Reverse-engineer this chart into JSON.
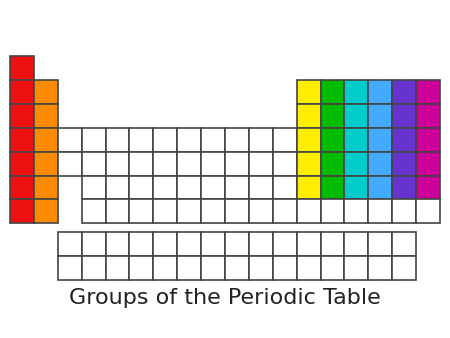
{
  "title": "Groups of the Periodic Table",
  "title_fontsize": 16,
  "bg_color": "#ffffff",
  "edge_color": "#444444",
  "lw": 1.2,
  "white": "#ffffff",
  "colors": {
    "red": "#ee1111",
    "orange": "#ff8c00",
    "yellow": "#ffee00",
    "green": "#00bb00",
    "teal": "#00cccc",
    "blue": "#44aaff",
    "purple": "#6633cc",
    "magenta": "#cc0099"
  },
  "row_structure": [
    [
      0
    ],
    [
      0,
      1,
      12,
      13,
      14,
      15,
      16,
      17
    ],
    [
      0,
      1,
      12,
      13,
      14,
      15,
      16,
      17
    ],
    [
      0,
      1,
      2,
      3,
      4,
      5,
      6,
      7,
      8,
      9,
      10,
      11,
      12,
      13,
      14,
      15,
      16,
      17
    ],
    [
      0,
      1,
      2,
      3,
      4,
      5,
      6,
      7,
      8,
      9,
      10,
      11,
      12,
      13,
      14,
      15,
      16,
      17
    ],
    [
      0,
      1,
      3,
      4,
      5,
      6,
      7,
      8,
      9,
      10,
      11,
      12,
      13,
      14,
      15,
      16,
      17
    ],
    [
      0,
      1,
      3,
      4,
      5,
      6,
      7,
      8,
      9,
      10,
      11,
      12,
      13,
      14,
      15,
      16,
      17
    ]
  ],
  "colored_cells": [
    {
      "r": 0,
      "c": 0,
      "color": "red"
    },
    {
      "r": 1,
      "c": 0,
      "color": "red"
    },
    {
      "r": 1,
      "c": 1,
      "color": "orange"
    },
    {
      "r": 1,
      "c": 17,
      "color": "magenta"
    },
    {
      "r": 2,
      "c": 0,
      "color": "red"
    },
    {
      "r": 2,
      "c": 1,
      "color": "orange"
    },
    {
      "r": 2,
      "c": 17,
      "color": "magenta"
    },
    {
      "r": 3,
      "c": 0,
      "color": "red"
    },
    {
      "r": 3,
      "c": 1,
      "color": "orange"
    },
    {
      "r": 3,
      "c": 17,
      "color": "magenta"
    },
    {
      "r": 4,
      "c": 0,
      "color": "red"
    },
    {
      "r": 4,
      "c": 1,
      "color": "orange"
    },
    {
      "r": 4,
      "c": 17,
      "color": "magenta"
    },
    {
      "r": 5,
      "c": 0,
      "color": "red"
    },
    {
      "r": 5,
      "c": 1,
      "color": "orange"
    },
    {
      "r": 5,
      "c": 17,
      "color": "magenta"
    },
    {
      "r": 6,
      "c": 0,
      "color": "red"
    },
    {
      "r": 6,
      "c": 1,
      "color": "orange"
    },
    {
      "r": 1,
      "c": 12,
      "color": "yellow"
    },
    {
      "r": 1,
      "c": 13,
      "color": "green"
    },
    {
      "r": 1,
      "c": 14,
      "color": "teal"
    },
    {
      "r": 1,
      "c": 15,
      "color": "blue"
    },
    {
      "r": 1,
      "c": 16,
      "color": "purple"
    },
    {
      "r": 2,
      "c": 12,
      "color": "yellow"
    },
    {
      "r": 2,
      "c": 13,
      "color": "green"
    },
    {
      "r": 2,
      "c": 14,
      "color": "teal"
    },
    {
      "r": 2,
      "c": 15,
      "color": "blue"
    },
    {
      "r": 2,
      "c": 16,
      "color": "purple"
    },
    {
      "r": 3,
      "c": 12,
      "color": "yellow"
    },
    {
      "r": 3,
      "c": 13,
      "color": "green"
    },
    {
      "r": 3,
      "c": 14,
      "color": "teal"
    },
    {
      "r": 3,
      "c": 15,
      "color": "blue"
    },
    {
      "r": 3,
      "c": 16,
      "color": "purple"
    },
    {
      "r": 4,
      "c": 12,
      "color": "yellow"
    },
    {
      "r": 4,
      "c": 13,
      "color": "green"
    },
    {
      "r": 4,
      "c": 14,
      "color": "teal"
    },
    {
      "r": 4,
      "c": 15,
      "color": "blue"
    },
    {
      "r": 4,
      "c": 16,
      "color": "purple"
    },
    {
      "r": 5,
      "c": 12,
      "color": "yellow"
    },
    {
      "r": 5,
      "c": 13,
      "color": "green"
    },
    {
      "r": 5,
      "c": 14,
      "color": "teal"
    },
    {
      "r": 5,
      "c": 15,
      "color": "blue"
    },
    {
      "r": 5,
      "c": 16,
      "color": "purple"
    }
  ],
  "la_ac_ncols": 15,
  "total_pt_cols": 18,
  "total_pt_rows": 7
}
